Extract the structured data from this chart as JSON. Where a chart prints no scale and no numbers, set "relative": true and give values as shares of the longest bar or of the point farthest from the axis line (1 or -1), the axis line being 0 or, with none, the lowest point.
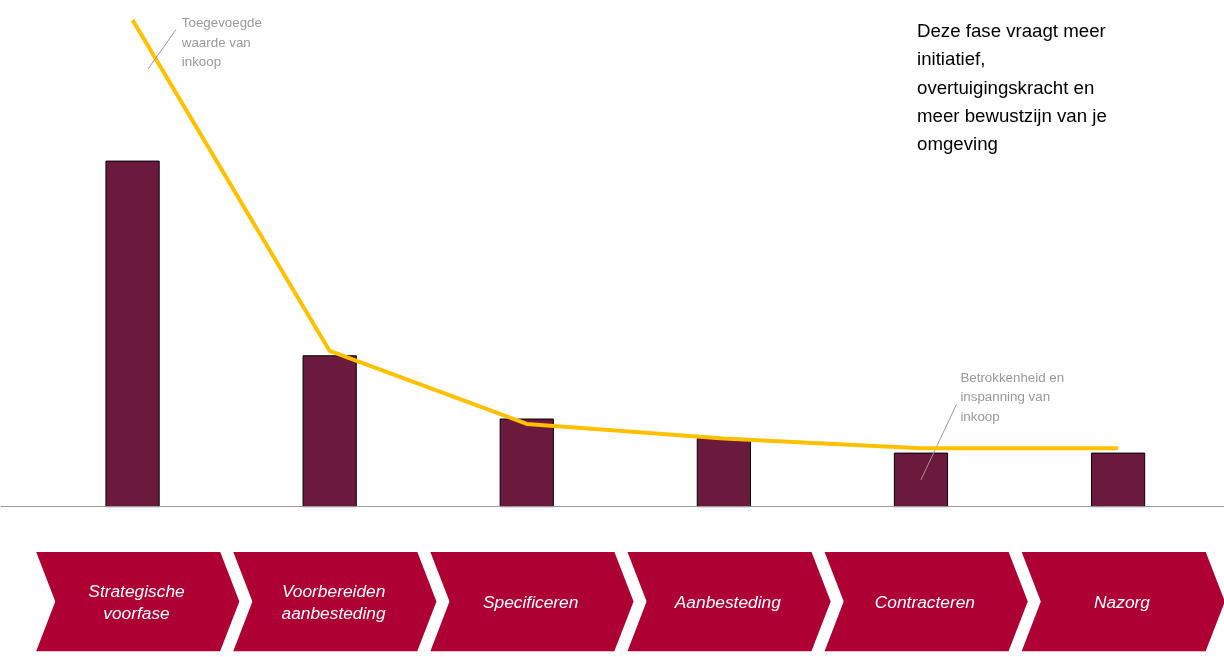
{
  "chart_data": {
    "type": "bar",
    "relative": true,
    "categories": [
      "Strategische voorfase",
      "Voorbereiden aanbesteding",
      "Specificeren",
      "Aanbesteding",
      "Contracteren",
      "Nazorg"
    ],
    "series": [
      {
        "name": "Betrokkenheid en inspanning van inkoop",
        "color": "#6b1a3e",
        "values": [
          0.71,
          0.31,
          0.18,
          0.14,
          0.11,
          0.11
        ]
      },
      {
        "name": "Toegevoegde waarde van inkoop",
        "type": "line",
        "color": "#ffc000",
        "values": [
          1,
          0.32,
          0.17,
          0.14,
          0.12,
          0.12
        ]
      }
    ],
    "annotations": [
      "Deze fase vraagt meer initiatief, overtuigingskracht en meer bewustzijn van je omgeving"
    ]
  }
}
